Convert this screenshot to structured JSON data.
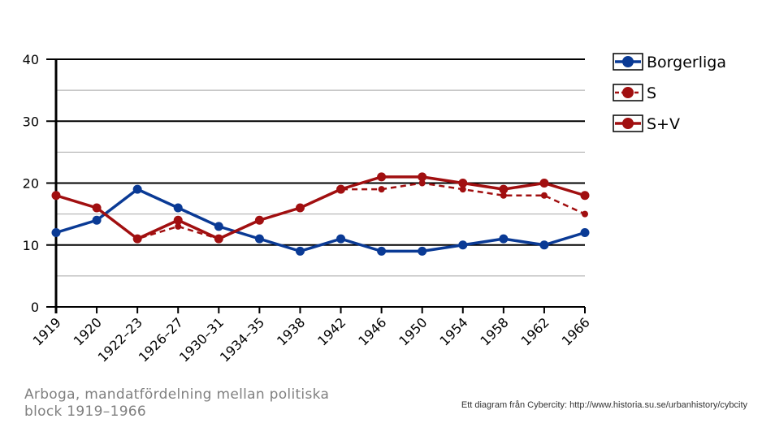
{
  "chart_data": {
    "type": "line",
    "categories": [
      "1919",
      "1920",
      "1922–23",
      "1926–27",
      "1930–31",
      "1934–35",
      "1938",
      "1942",
      "1946",
      "1950",
      "1954",
      "1958",
      "1962",
      "1966"
    ],
    "series": [
      {
        "name": "Borgerliga",
        "color": "#0a3a95",
        "style": "solid",
        "values": [
          12,
          14,
          19,
          16,
          13,
          11,
          9,
          11,
          9,
          9,
          10,
          11,
          10,
          12
        ]
      },
      {
        "name": "S",
        "color": "#a10f10",
        "style": "dashed",
        "values": [
          18,
          16,
          11,
          13,
          11,
          14,
          16,
          19,
          19,
          20,
          19,
          18,
          18,
          15
        ]
      },
      {
        "name": "S+V",
        "color": "#a10f10",
        "style": "solid",
        "values": [
          18,
          16,
          11,
          14,
          11,
          14,
          16,
          19,
          21,
          21,
          20,
          19,
          20,
          18
        ]
      }
    ],
    "ylim": [
      0,
      40
    ],
    "yticks": [
      0,
      10,
      20,
      30,
      40
    ],
    "grid": true,
    "legend_position": "top-right"
  },
  "caption": "Arboga, mandatfördelning  mellan politiska block 1919–1966",
  "credit": "Ett diagram från Cybercity: http://www.historia.su.se/urbanhistory/cybcity"
}
